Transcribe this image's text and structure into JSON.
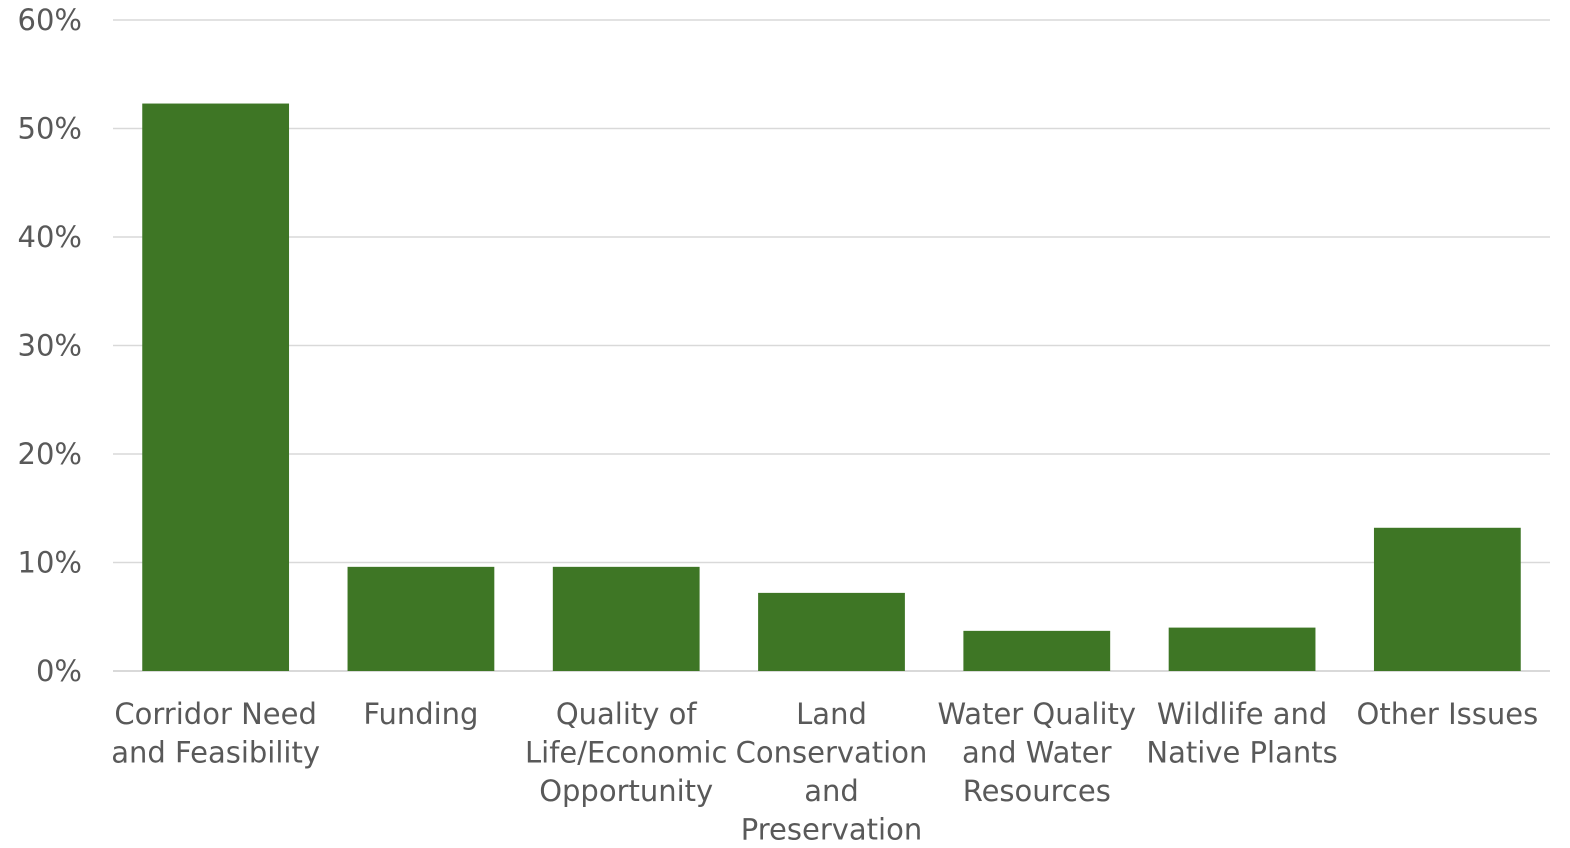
{
  "chart_data": {
    "type": "bar",
    "categories": [
      [
        "Corridor Need",
        "and Feasibility"
      ],
      [
        "Funding"
      ],
      [
        "Quality of",
        "Life/Economic",
        "Opportunity"
      ],
      [
        "Land",
        "Conservation",
        "and",
        "Preservation"
      ],
      [
        "Water Quality",
        "and Water",
        "Resources"
      ],
      [
        "Wildlife and",
        "Native Plants"
      ],
      [
        "Other Issues"
      ]
    ],
    "values": [
      52.3,
      9.6,
      9.6,
      7.2,
      3.7,
      4.0,
      13.2
    ],
    "ylim": [
      0,
      60
    ],
    "yticks": [
      0,
      10,
      20,
      30,
      40,
      50,
      60
    ],
    "ytick_labels": [
      "0%",
      "10%",
      "20%",
      "30%",
      "40%",
      "50%",
      "60%"
    ],
    "bar_color": "#3e7625",
    "grid": true,
    "title": "",
    "xlabel": "",
    "ylabel": ""
  }
}
